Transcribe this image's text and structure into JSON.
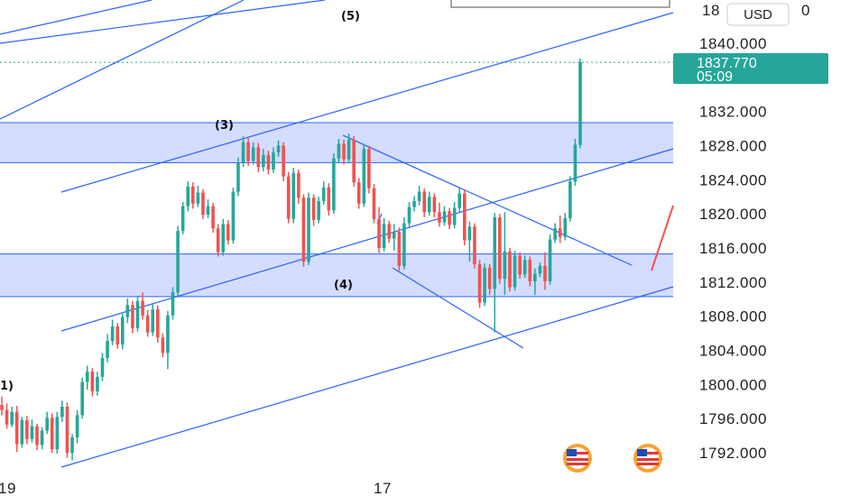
{
  "chart_data": {
    "type": "candlestick",
    "currency": "USD",
    "y_ticks": [
      "1792.000",
      "1796.000",
      "1800.000",
      "1804.000",
      "1808.000",
      "1812.000",
      "1816.000",
      "1820.000",
      "1824.000",
      "1828.000",
      "1832.000",
      "1840.000"
    ],
    "y_top_partial": "18",
    "y_top_partial_tail": "0",
    "ylim": [
      1790.5,
      1843.5
    ],
    "x_labels": [
      "19",
      "17"
    ],
    "last_price": "1837.770",
    "countdown": "05:09",
    "colors": {
      "up": "#26a69a",
      "down": "#ef5350",
      "lines": "#2962ff",
      "zone": "rgba(100,130,255,0.28)",
      "tag": "#26a69a"
    },
    "zones": [
      {
        "from": 1826.0,
        "to": 1830.7
      },
      {
        "from": 1810.3,
        "to": 1815.3
      }
    ],
    "wave_labels": [
      "(5)",
      "(3)",
      "(4)",
      "1)"
    ],
    "series": [
      {
        "name": "",
        "ohlc": [
          [
            1797.6,
            1798.6,
            1796.4,
            1797.0
          ],
          [
            1797.0,
            1797.8,
            1794.8,
            1795.3
          ],
          [
            1795.3,
            1797.4,
            1795.0,
            1796.8
          ],
          [
            1796.8,
            1797.5,
            1792.1,
            1793.0
          ],
          [
            1793.0,
            1796.2,
            1792.6,
            1795.8
          ],
          [
            1795.8,
            1796.3,
            1793.0,
            1793.6
          ],
          [
            1793.6,
            1795.9,
            1793.2,
            1795.1
          ],
          [
            1795.1,
            1795.4,
            1792.3,
            1792.9
          ],
          [
            1792.9,
            1795.0,
            1792.4,
            1794.6
          ],
          [
            1794.6,
            1796.8,
            1794.2,
            1796.1
          ],
          [
            1796.1,
            1796.6,
            1792.0,
            1792.4
          ],
          [
            1792.4,
            1796.8,
            1791.9,
            1796.2
          ],
          [
            1796.2,
            1798.1,
            1795.6,
            1797.4
          ],
          [
            1797.4,
            1797.9,
            1791.4,
            1792.0
          ],
          [
            1792.0,
            1794.2,
            1791.1,
            1793.8
          ],
          [
            1793.8,
            1797.0,
            1793.1,
            1796.4
          ],
          [
            1796.4,
            1800.8,
            1796.0,
            1800.3
          ],
          [
            1800.3,
            1802.2,
            1799.4,
            1801.5
          ],
          [
            1801.5,
            1801.9,
            1798.6,
            1799.2
          ],
          [
            1799.2,
            1801.5,
            1798.7,
            1800.9
          ],
          [
            1800.9,
            1803.7,
            1800.4,
            1803.1
          ],
          [
            1803.1,
            1805.9,
            1802.6,
            1805.1
          ],
          [
            1805.1,
            1807.6,
            1804.6,
            1806.8
          ],
          [
            1806.8,
            1807.2,
            1804.2,
            1804.7
          ],
          [
            1804.7,
            1808.3,
            1804.1,
            1807.9
          ],
          [
            1807.9,
            1810.1,
            1807.2,
            1809.3
          ],
          [
            1809.3,
            1809.8,
            1806.0,
            1806.6
          ],
          [
            1806.6,
            1810.4,
            1806.2,
            1809.8
          ],
          [
            1809.8,
            1810.8,
            1807.6,
            1808.1
          ],
          [
            1808.1,
            1808.7,
            1805.6,
            1806.1
          ],
          [
            1806.1,
            1809.4,
            1805.7,
            1808.8
          ],
          [
            1808.8,
            1809.3,
            1804.9,
            1805.5
          ],
          [
            1805.5,
            1806.0,
            1803.2,
            1803.7
          ],
          [
            1803.7,
            1808.6,
            1801.8,
            1808.1
          ],
          [
            1808.1,
            1811.4,
            1807.6,
            1810.8
          ],
          [
            1810.8,
            1818.6,
            1810.2,
            1818.0
          ],
          [
            1818.0,
            1821.4,
            1817.6,
            1820.9
          ],
          [
            1820.9,
            1823.8,
            1820.3,
            1823.2
          ],
          [
            1823.2,
            1823.7,
            1820.6,
            1821.2
          ],
          [
            1821.2,
            1823.3,
            1820.8,
            1822.5
          ],
          [
            1822.5,
            1822.9,
            1819.4,
            1819.9
          ],
          [
            1819.9,
            1821.7,
            1819.5,
            1820.9
          ],
          [
            1820.9,
            1821.3,
            1817.8,
            1818.3
          ],
          [
            1818.3,
            1818.8,
            1815.0,
            1815.5
          ],
          [
            1815.5,
            1819.4,
            1815.1,
            1818.8
          ],
          [
            1818.8,
            1819.3,
            1816.4,
            1816.9
          ],
          [
            1816.9,
            1823.1,
            1816.5,
            1822.6
          ],
          [
            1822.6,
            1826.6,
            1822.1,
            1826.0
          ],
          [
            1826.0,
            1829.1,
            1825.5,
            1828.4
          ],
          [
            1828.4,
            1828.9,
            1825.6,
            1826.2
          ],
          [
            1826.2,
            1828.4,
            1825.8,
            1827.8
          ],
          [
            1827.8,
            1828.3,
            1824.9,
            1825.5
          ],
          [
            1825.5,
            1827.6,
            1825.0,
            1826.9
          ],
          [
            1826.9,
            1827.4,
            1824.6,
            1825.2
          ],
          [
            1825.2,
            1827.8,
            1824.8,
            1827.2
          ],
          [
            1827.2,
            1828.6,
            1826.7,
            1828.0
          ],
          [
            1828.0,
            1828.4,
            1823.8,
            1824.4
          ],
          [
            1824.4,
            1824.9,
            1818.9,
            1819.4
          ],
          [
            1819.4,
            1825.4,
            1818.9,
            1824.8
          ],
          [
            1824.8,
            1825.2,
            1821.2,
            1821.9
          ],
          [
            1821.9,
            1822.3,
            1813.8,
            1814.4
          ],
          [
            1814.4,
            1822.5,
            1814.0,
            1821.9
          ],
          [
            1821.9,
            1822.3,
            1818.6,
            1819.3
          ],
          [
            1819.3,
            1822.0,
            1818.9,
            1821.5
          ],
          [
            1821.5,
            1823.8,
            1821.1,
            1823.1
          ],
          [
            1823.1,
            1823.6,
            1819.8,
            1820.4
          ],
          [
            1820.4,
            1827.1,
            1820.0,
            1826.5
          ],
          [
            1826.5,
            1828.8,
            1826.0,
            1828.2
          ],
          [
            1828.2,
            1828.7,
            1825.8,
            1826.4
          ],
          [
            1826.4,
            1829.4,
            1826.0,
            1828.7
          ],
          [
            1828.7,
            1829.1,
            1823.2,
            1823.7
          ],
          [
            1823.7,
            1824.2,
            1820.6,
            1821.2
          ],
          [
            1821.2,
            1828.2,
            1820.8,
            1827.6
          ],
          [
            1827.6,
            1828.0,
            1822.4,
            1823.0
          ],
          [
            1823.0,
            1823.5,
            1818.9,
            1819.4
          ],
          [
            1819.4,
            1820.8,
            1815.4,
            1816.0
          ],
          [
            1816.0,
            1819.5,
            1815.6,
            1818.8
          ],
          [
            1818.8,
            1819.2,
            1816.6,
            1817.1
          ],
          [
            1817.1,
            1818.8,
            1815.7,
            1817.9
          ],
          [
            1817.9,
            1818.4,
            1813.3,
            1813.9
          ],
          [
            1813.9,
            1819.6,
            1813.5,
            1818.9
          ],
          [
            1818.9,
            1821.4,
            1818.5,
            1820.8
          ],
          [
            1820.8,
            1822.1,
            1820.3,
            1821.5
          ],
          [
            1821.5,
            1823.3,
            1821.0,
            1822.6
          ],
          [
            1822.6,
            1823.0,
            1819.6,
            1820.2
          ],
          [
            1820.2,
            1822.6,
            1819.8,
            1822.0
          ],
          [
            1822.0,
            1822.4,
            1819.6,
            1820.2
          ],
          [
            1820.2,
            1821.3,
            1818.5,
            1819.0
          ],
          [
            1819.0,
            1820.9,
            1818.6,
            1820.3
          ],
          [
            1820.3,
            1820.7,
            1818.2,
            1818.7
          ],
          [
            1818.7,
            1821.4,
            1818.3,
            1820.7
          ],
          [
            1820.7,
            1823.1,
            1820.2,
            1822.4
          ],
          [
            1822.4,
            1822.8,
            1816.3,
            1816.9
          ],
          [
            1816.9,
            1819.1,
            1814.4,
            1818.5
          ],
          [
            1818.5,
            1818.9,
            1813.6,
            1814.1
          ],
          [
            1814.1,
            1814.6,
            1809.0,
            1809.6
          ],
          [
            1809.6,
            1814.2,
            1809.2,
            1813.7
          ],
          [
            1813.7,
            1814.1,
            1810.5,
            1811.2
          ],
          [
            1811.2,
            1820.1,
            1806.1,
            1819.6
          ],
          [
            1819.6,
            1820.0,
            1811.8,
            1812.4
          ],
          [
            1812.4,
            1820.2,
            1810.5,
            1815.6
          ],
          [
            1815.6,
            1816.0,
            1810.9,
            1811.4
          ],
          [
            1811.4,
            1815.7,
            1811.0,
            1815.1
          ],
          [
            1815.1,
            1815.5,
            1812.4,
            1812.9
          ],
          [
            1812.9,
            1815.1,
            1812.5,
            1814.6
          ],
          [
            1814.6,
            1815.0,
            1811.5,
            1812.1
          ],
          [
            1812.1,
            1813.6,
            1810.5,
            1813.0
          ],
          [
            1813.0,
            1814.3,
            1812.6,
            1813.9
          ],
          [
            1813.9,
            1815.5,
            1811.1,
            1812.1
          ],
          [
            1812.1,
            1817.6,
            1811.7,
            1817.0
          ],
          [
            1817.0,
            1818.9,
            1816.6,
            1818.3
          ],
          [
            1818.3,
            1819.8,
            1816.6,
            1817.3
          ],
          [
            1817.3,
            1820.1,
            1816.9,
            1819.5
          ],
          [
            1819.5,
            1824.4,
            1819.1,
            1823.8
          ],
          [
            1823.8,
            1828.8,
            1823.3,
            1828.1
          ],
          [
            1828.1,
            1838.2,
            1827.7,
            1837.77
          ]
        ]
      }
    ]
  }
}
